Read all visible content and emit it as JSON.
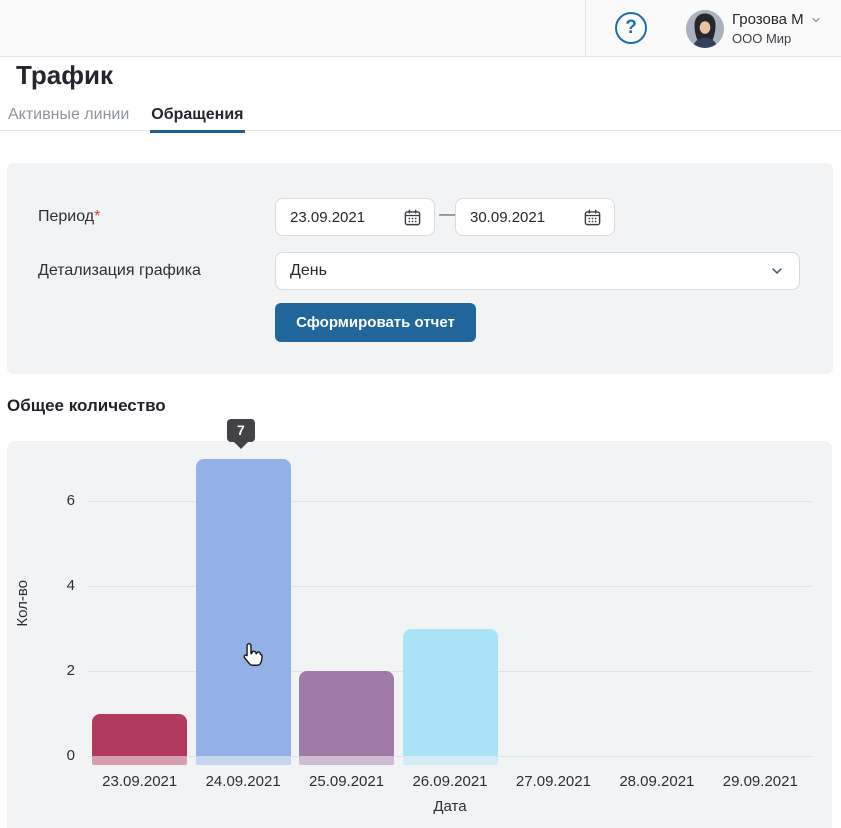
{
  "header": {
    "help_icon": "?",
    "user": {
      "name": "Грозова М",
      "company": "ООО Мир"
    }
  },
  "page": {
    "title": "Трафик"
  },
  "tabs": {
    "active_lines": "Активные линии",
    "requests": "Обращения"
  },
  "form": {
    "period_label": "Период",
    "required_mark": "*",
    "date_from": "23.09.2021",
    "date_to": "30.09.2021",
    "range_separator": "—",
    "detail_label": "Детализация графика",
    "detail_value": "День",
    "submit_label": "Сформировать отчет"
  },
  "chart_section": {
    "title": "Общее количество"
  },
  "chart_data": {
    "type": "bar",
    "title": "Общее количество",
    "categories": [
      "23.09.2021",
      "24.09.2021",
      "25.09.2021",
      "26.09.2021",
      "27.09.2021",
      "28.09.2021",
      "29.09.2021"
    ],
    "values": [
      1,
      7,
      2,
      3,
      0,
      0,
      0
    ],
    "bar_colors": [
      "#b23a5e",
      "#93b1e7",
      "#a07ba8",
      "#abe3f6"
    ],
    "xlabel": "Дата",
    "ylabel": "Кол-во",
    "yticks": [
      0,
      2,
      4,
      6
    ],
    "ylim": [
      0,
      7
    ],
    "grid": true,
    "legend": false,
    "tooltip": {
      "category": "24.09.2021",
      "value": "7"
    }
  },
  "colors": {
    "accent_blue": "#20669a",
    "tab_underline": "#1f608f",
    "panel_bg": "#f2f3f5",
    "tooltip_bg": "#424247"
  }
}
